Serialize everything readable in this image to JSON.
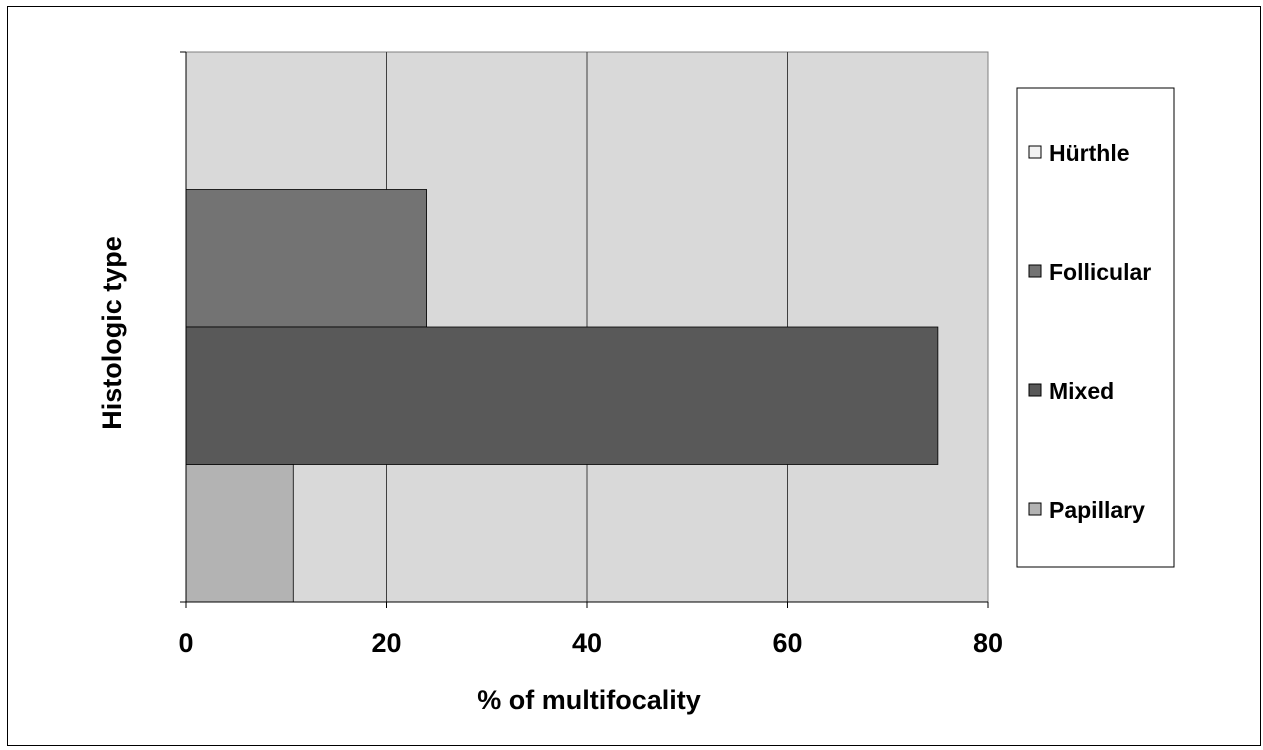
{
  "chart_data": {
    "type": "bar",
    "orientation": "horizontal",
    "ylabel": "Histologic type",
    "xlabel": "% of multifocality",
    "xlim": [
      0,
      80
    ],
    "xticks": [
      0,
      20,
      40,
      60,
      80
    ],
    "x_tick_labels": [
      "0",
      "20",
      "40",
      "60",
      "80"
    ],
    "grid": "vertical",
    "legend_position": "right",
    "plot_background": "#d9d9d9",
    "series": [
      {
        "name": "Hürthle",
        "value": 0,
        "color": "#f2f2f2"
      },
      {
        "name": "Follicular",
        "value": 24,
        "color": "#737373"
      },
      {
        "name": "Mixed",
        "value": 75,
        "color": "#595959"
      },
      {
        "name": "Papillary",
        "value": 10.7,
        "color": "#b3b3b3"
      }
    ]
  }
}
